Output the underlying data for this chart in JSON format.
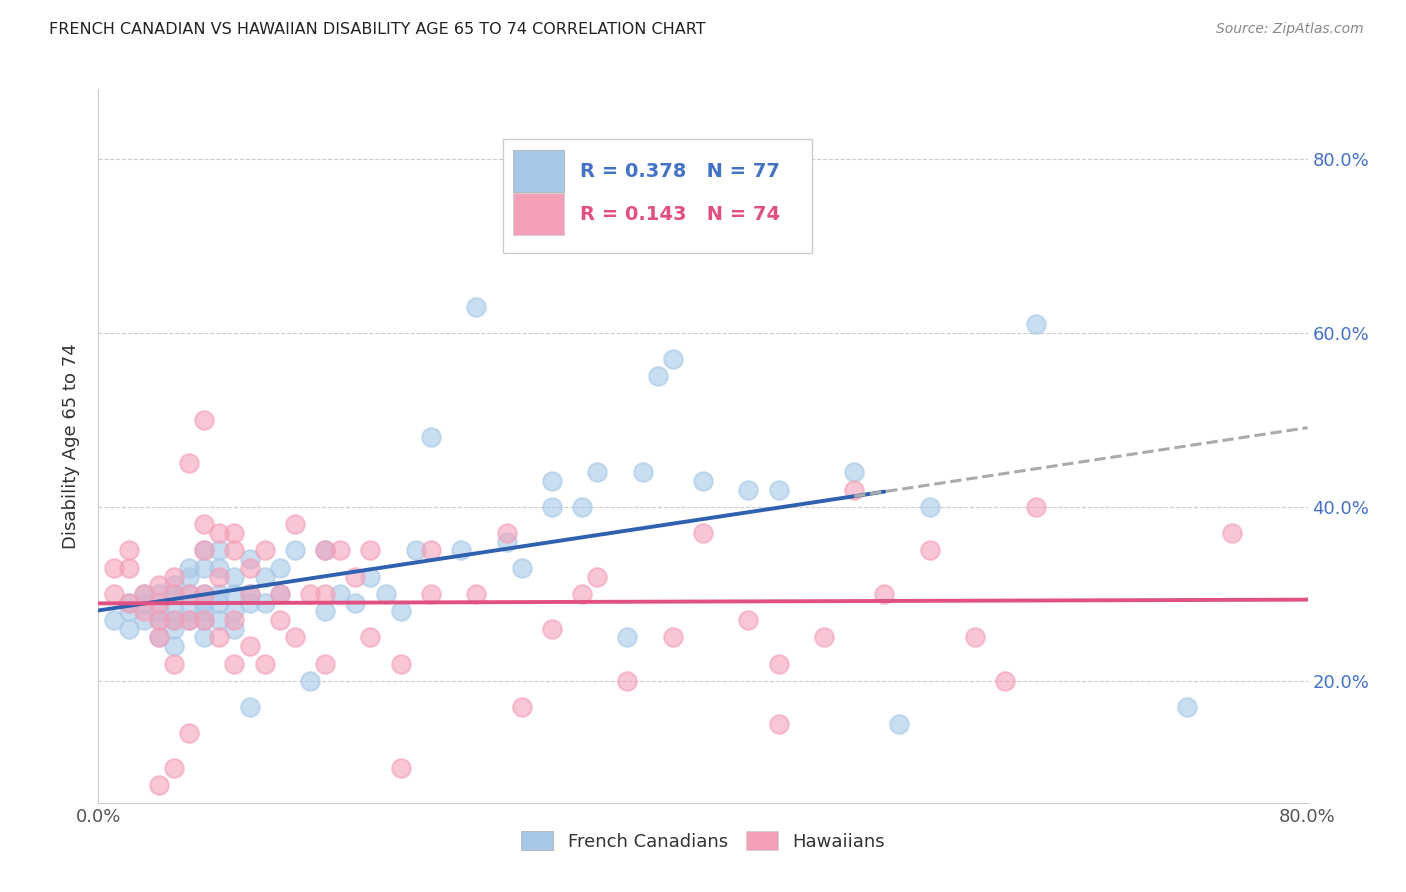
{
  "title": "FRENCH CANADIAN VS HAWAIIAN DISABILITY AGE 65 TO 74 CORRELATION CHART",
  "source": "Source: ZipAtlas.com",
  "ylabel": "Disability Age 65 to 74",
  "ytick_labels": [
    "20.0%",
    "40.0%",
    "60.0%",
    "80.0%"
  ],
  "ytick_values": [
    0.2,
    0.4,
    0.6,
    0.8
  ],
  "xlim": [
    0.0,
    0.8
  ],
  "ylim": [
    0.06,
    0.88
  ],
  "legend_label1": "French Canadians",
  "legend_label2": "Hawaiians",
  "R1": 0.378,
  "N1": 77,
  "R2": 0.143,
  "N2": 74,
  "blue_scatter_color": "#a8c8e8",
  "pink_scatter_color": "#f4a0b8",
  "blue_line_color": "#3060b0",
  "pink_line_color": "#e05080",
  "dashed_line_color": "#aaaaaa",
  "background_color": "#ffffff",
  "grid_color": "#cccccc",
  "french_canadians_x": [
    0.01,
    0.02,
    0.02,
    0.02,
    0.03,
    0.03,
    0.03,
    0.04,
    0.04,
    0.04,
    0.04,
    0.05,
    0.05,
    0.05,
    0.05,
    0.05,
    0.05,
    0.06,
    0.06,
    0.06,
    0.06,
    0.06,
    0.07,
    0.07,
    0.07,
    0.07,
    0.07,
    0.07,
    0.07,
    0.08,
    0.08,
    0.08,
    0.08,
    0.08,
    0.09,
    0.09,
    0.09,
    0.09,
    0.1,
    0.1,
    0.1,
    0.1,
    0.11,
    0.11,
    0.12,
    0.12,
    0.13,
    0.14,
    0.15,
    0.15,
    0.16,
    0.17,
    0.18,
    0.19,
    0.2,
    0.21,
    0.22,
    0.24,
    0.25,
    0.27,
    0.28,
    0.3,
    0.3,
    0.32,
    0.33,
    0.35,
    0.36,
    0.37,
    0.38,
    0.4,
    0.43,
    0.45,
    0.5,
    0.53,
    0.55,
    0.62,
    0.72
  ],
  "french_canadians_y": [
    0.27,
    0.28,
    0.26,
    0.29,
    0.27,
    0.29,
    0.3,
    0.25,
    0.27,
    0.28,
    0.3,
    0.24,
    0.26,
    0.27,
    0.28,
    0.3,
    0.31,
    0.27,
    0.28,
    0.3,
    0.32,
    0.33,
    0.25,
    0.27,
    0.28,
    0.29,
    0.3,
    0.33,
    0.35,
    0.27,
    0.29,
    0.3,
    0.33,
    0.35,
    0.26,
    0.28,
    0.3,
    0.32,
    0.17,
    0.29,
    0.3,
    0.34,
    0.29,
    0.32,
    0.3,
    0.33,
    0.35,
    0.2,
    0.28,
    0.35,
    0.3,
    0.29,
    0.32,
    0.3,
    0.28,
    0.35,
    0.48,
    0.35,
    0.63,
    0.36,
    0.33,
    0.4,
    0.43,
    0.4,
    0.44,
    0.25,
    0.44,
    0.55,
    0.57,
    0.43,
    0.42,
    0.42,
    0.44,
    0.15,
    0.4,
    0.61,
    0.17
  ],
  "hawaiians_x": [
    0.01,
    0.01,
    0.02,
    0.02,
    0.02,
    0.03,
    0.03,
    0.04,
    0.04,
    0.04,
    0.04,
    0.04,
    0.05,
    0.05,
    0.05,
    0.05,
    0.05,
    0.06,
    0.06,
    0.06,
    0.06,
    0.07,
    0.07,
    0.07,
    0.07,
    0.07,
    0.08,
    0.08,
    0.08,
    0.09,
    0.09,
    0.09,
    0.09,
    0.1,
    0.1,
    0.1,
    0.11,
    0.11,
    0.12,
    0.12,
    0.13,
    0.13,
    0.14,
    0.15,
    0.15,
    0.15,
    0.16,
    0.17,
    0.18,
    0.18,
    0.2,
    0.2,
    0.22,
    0.22,
    0.25,
    0.27,
    0.28,
    0.3,
    0.32,
    0.33,
    0.35,
    0.38,
    0.4,
    0.43,
    0.45,
    0.45,
    0.48,
    0.5,
    0.52,
    0.55,
    0.58,
    0.6,
    0.62,
    0.75
  ],
  "hawaiians_y": [
    0.3,
    0.33,
    0.29,
    0.33,
    0.35,
    0.28,
    0.3,
    0.08,
    0.25,
    0.27,
    0.29,
    0.31,
    0.1,
    0.22,
    0.27,
    0.3,
    0.32,
    0.14,
    0.27,
    0.3,
    0.45,
    0.27,
    0.3,
    0.35,
    0.38,
    0.5,
    0.25,
    0.32,
    0.37,
    0.22,
    0.27,
    0.35,
    0.37,
    0.24,
    0.3,
    0.33,
    0.22,
    0.35,
    0.27,
    0.3,
    0.25,
    0.38,
    0.3,
    0.22,
    0.3,
    0.35,
    0.35,
    0.32,
    0.25,
    0.35,
    0.1,
    0.22,
    0.3,
    0.35,
    0.3,
    0.37,
    0.17,
    0.26,
    0.3,
    0.32,
    0.2,
    0.25,
    0.37,
    0.27,
    0.15,
    0.22,
    0.25,
    0.42,
    0.3,
    0.35,
    0.25,
    0.2,
    0.4,
    0.37
  ]
}
